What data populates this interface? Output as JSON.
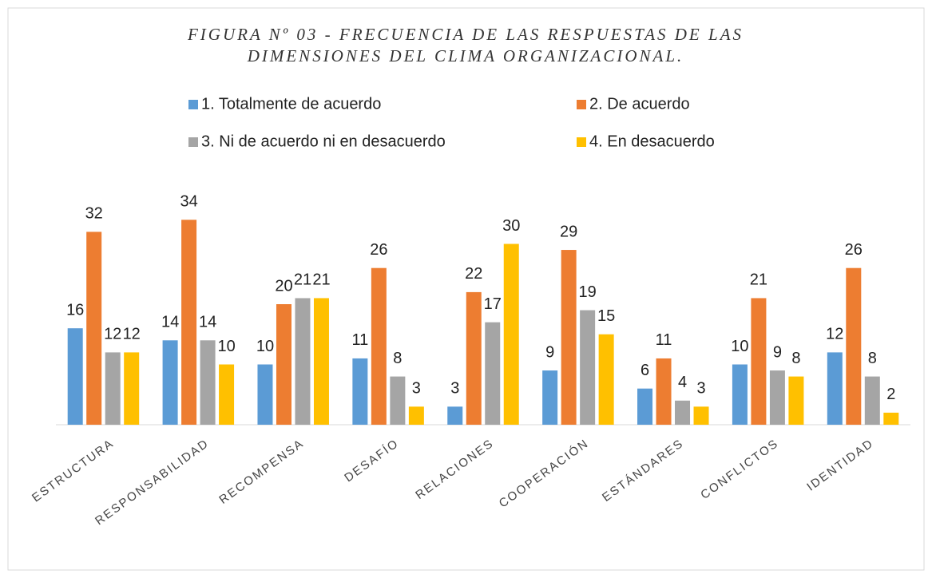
{
  "chart_data": {
    "type": "bar",
    "title": [
      "FIGURA Nº 03 -  FRECUENCIA DE LAS RESPUESTAS DE LAS",
      "DIMENSIONES DEL CLIMA ORGANIZACIONAL."
    ],
    "categories": [
      "ESTRUCTURA",
      "RESPONSABILIDAD",
      "RECOMPENSA",
      "DESAFÍO",
      "RELACIONES",
      "COOPERACIÓN",
      "ESTÁNDARES",
      "CONFLICTOS",
      "IDENTIDAD"
    ],
    "series": [
      {
        "name": "1. Totalmente de acuerdo",
        "color": "#5b9bd5",
        "values": [
          16,
          14,
          10,
          11,
          3,
          9,
          6,
          10,
          12
        ]
      },
      {
        "name": "2. De acuerdo",
        "color": "#ed7d31",
        "values": [
          32,
          34,
          20,
          26,
          22,
          29,
          11,
          21,
          26
        ]
      },
      {
        "name": "3. Ni de acuerdo ni en desacuerdo",
        "color": "#a5a5a5",
        "values": [
          12,
          14,
          21,
          8,
          17,
          19,
          4,
          9,
          8
        ]
      },
      {
        "name": "4. En desacuerdo",
        "color": "#ffc000",
        "values": [
          12,
          10,
          21,
          3,
          30,
          15,
          3,
          8,
          2
        ]
      }
    ],
    "ylim": [
      0,
      40
    ]
  }
}
